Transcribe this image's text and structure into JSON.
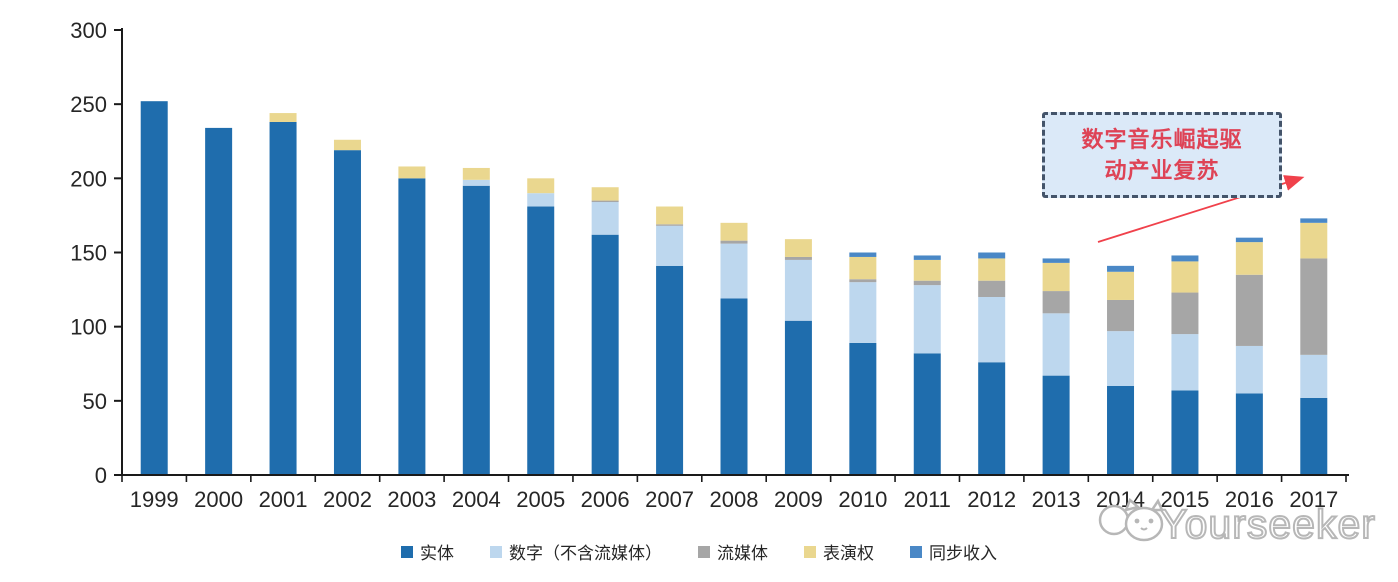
{
  "chart_data": {
    "type": "bar",
    "stacked": true,
    "title": "",
    "xlabel": "",
    "ylabel": "",
    "ylim": [
      0,
      300
    ],
    "ytick_step": 50,
    "yticks": [
      "0",
      "50",
      "100",
      "150",
      "200",
      "250",
      "300"
    ],
    "grid": false,
    "legend_position": "bottom",
    "categories": [
      "1999",
      "2000",
      "2001",
      "2002",
      "2003",
      "2004",
      "2005",
      "2006",
      "2007",
      "2008",
      "2009",
      "2010",
      "2011",
      "2012",
      "2013",
      "2014",
      "2015",
      "2016",
      "2017"
    ],
    "series": [
      {
        "name": "实体",
        "color": "#1F6DAD",
        "values": [
          252,
          234,
          238,
          219,
          200,
          195,
          181,
          162,
          141,
          119,
          104,
          89,
          82,
          76,
          67,
          60,
          57,
          55,
          52
        ]
      },
      {
        "name": "数字（不含流媒体）",
        "color": "#BDD7EE",
        "values": [
          0,
          0,
          0,
          0,
          0,
          4,
          9,
          22,
          27,
          37,
          41,
          41,
          46,
          44,
          42,
          37,
          38,
          32,
          29
        ]
      },
      {
        "name": "流媒体",
        "color": "#A6A6A6",
        "values": [
          0,
          0,
          0,
          0,
          0,
          0,
          0,
          1,
          1,
          2,
          2,
          2,
          3,
          11,
          15,
          21,
          28,
          48,
          65
        ]
      },
      {
        "name": "表演权",
        "color": "#EAD78F",
        "values": [
          0,
          0,
          6,
          7,
          8,
          8,
          10,
          9,
          12,
          12,
          12,
          15,
          14,
          15,
          19,
          19,
          21,
          22,
          24
        ]
      },
      {
        "name": "同步收入",
        "color": "#4A88C6",
        "values": [
          0,
          0,
          0,
          0,
          0,
          0,
          0,
          0,
          0,
          0,
          0,
          3,
          3,
          4,
          3,
          4,
          4,
          3,
          3
        ]
      }
    ]
  },
  "annotation": {
    "line1": "数字音乐崛起驱",
    "line2": "动产业复苏",
    "text": "数字音乐崛起驱动产业复苏",
    "box_fill": "#DBE9F8",
    "box_border": "#44546A",
    "text_color": "#DE4356",
    "arrow_color": "#F0414B"
  },
  "axis": {
    "line_color": "#1A1A1A",
    "label_color": "#262626"
  },
  "watermark": {
    "text": "Yourseeker",
    "color": "#b5b5b5"
  }
}
